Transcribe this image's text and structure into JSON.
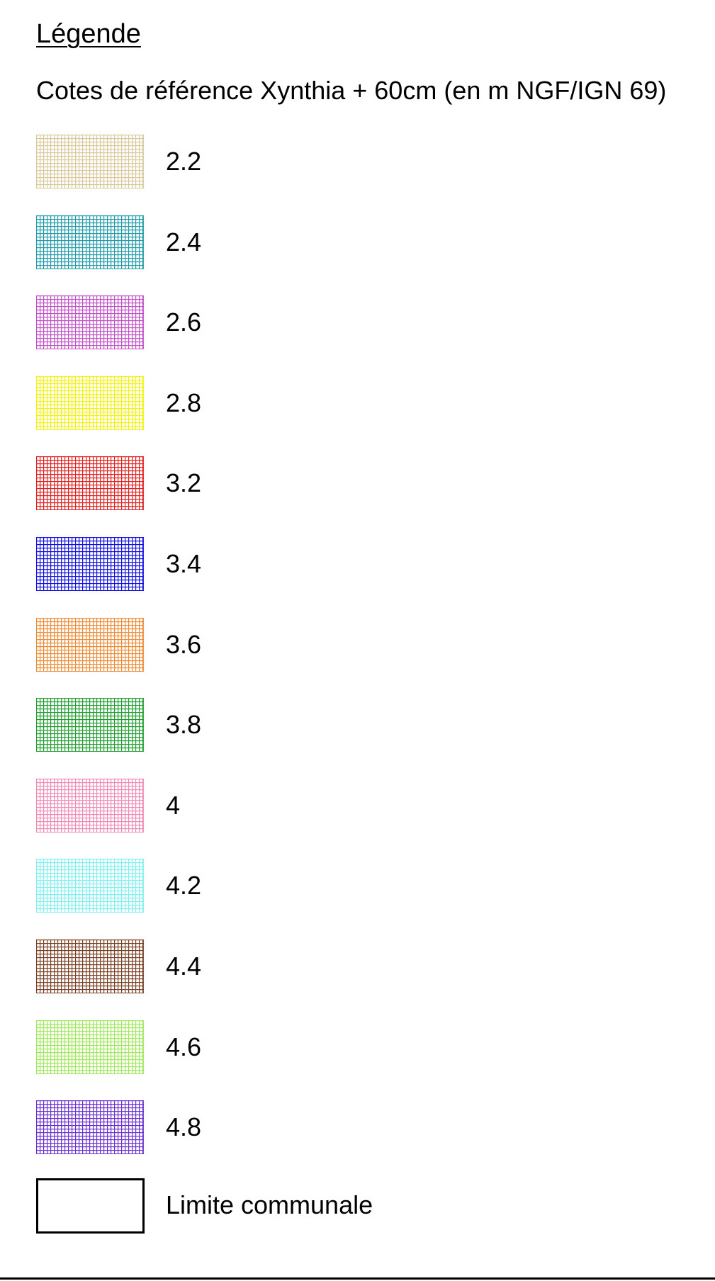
{
  "legend": {
    "title": "Légende",
    "subtitle": "Cotes de référence Xynthia + 60cm (en m NGF/IGN 69)",
    "items": [
      {
        "label": "2.2",
        "color": "#d9c99a"
      },
      {
        "label": "2.4",
        "color": "#1f9aa8"
      },
      {
        "label": "2.6",
        "color": "#c14fc8"
      },
      {
        "label": "2.8",
        "color": "#f2f20a"
      },
      {
        "label": "3.2",
        "color": "#e11f1f"
      },
      {
        "label": "3.4",
        "color": "#1010e0"
      },
      {
        "label": "3.6",
        "color": "#ee8a33"
      },
      {
        "label": "3.8",
        "color": "#1f9e2f"
      },
      {
        "label": "4",
        "color": "#f08ab4"
      },
      {
        "label": "4.2",
        "color": "#7ff0ee"
      },
      {
        "label": "4.4",
        "color": "#7a3f22"
      },
      {
        "label": "4.6",
        "color": "#9ee85a"
      },
      {
        "label": "4.8",
        "color": "#6a2fd2"
      }
    ],
    "boundary": {
      "label": "Limite communale",
      "color": "#000000"
    }
  }
}
